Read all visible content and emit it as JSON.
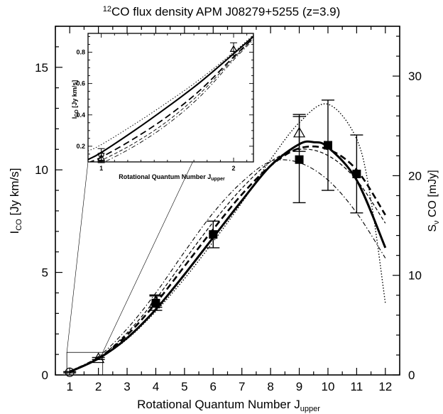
{
  "chart_data": {
    "type": "line",
    "title": {
      "sup": "12",
      "rest": "CO flux density APM J08279+5255 (z=3.9)"
    },
    "xlabel": {
      "main": "Rotational Quantum Number J",
      "sub": "upper"
    },
    "ylabel": {
      "main": "I",
      "sub": "CO",
      "rest": " [Jy km/s]"
    },
    "y2label": {
      "main": "S",
      "sub": "ν",
      "rest": " CO [mJy]"
    },
    "xlim": [
      0.5,
      12.5
    ],
    "ylim": [
      0,
      17
    ],
    "xticks": [
      1,
      2,
      3,
      4,
      5,
      6,
      7,
      8,
      9,
      10,
      11,
      12
    ],
    "yticks": [
      0,
      5,
      10,
      15
    ],
    "y2lim": [
      0,
      35
    ],
    "y2ticks": [
      0,
      10,
      20,
      30
    ],
    "grid": false,
    "series": [
      {
        "style": "thick-solid",
        "x": [
          1,
          2,
          3,
          4,
          5,
          6,
          7,
          8,
          9,
          9.5,
          10,
          11,
          12
        ],
        "y": [
          0.15,
          0.8,
          1.8,
          3.2,
          4.9,
          6.7,
          8.5,
          10.2,
          11.25,
          11.35,
          11.1,
          9.5,
          6.2
        ]
      },
      {
        "style": "thick-dashed",
        "x": [
          1,
          2,
          3,
          4,
          5,
          6,
          7,
          8,
          9,
          10,
          11,
          12
        ],
        "y": [
          0.16,
          0.82,
          1.95,
          3.5,
          5.3,
          7.1,
          8.8,
          10.2,
          11.05,
          11.0,
          10.0,
          7.8
        ]
      },
      {
        "style": "thin-dashed",
        "x": [
          1,
          2,
          3,
          4,
          5,
          6,
          7,
          8,
          9,
          10,
          11,
          12
        ],
        "y": [
          0.17,
          0.84,
          2.05,
          3.7,
          5.6,
          7.45,
          9.1,
          10.4,
          11.0,
          10.7,
          9.5,
          7.4
        ]
      },
      {
        "style": "dash-dot",
        "x": [
          1,
          2,
          3,
          4,
          5,
          6,
          7,
          8,
          9,
          10,
          11,
          12
        ],
        "y": [
          0.19,
          0.9,
          2.25,
          4.0,
          6.0,
          7.9,
          9.4,
          10.4,
          10.35,
          9.5,
          7.9,
          5.7
        ]
      },
      {
        "style": "dotted",
        "x": [
          1,
          2,
          3,
          4,
          5,
          6,
          7,
          8,
          9,
          10,
          11,
          11.5,
          12
        ],
        "y": [
          0.14,
          0.78,
          1.75,
          3.1,
          4.7,
          6.5,
          8.4,
          10.5,
          12.3,
          13.2,
          11.5,
          8.5,
          3.5
        ]
      }
    ],
    "points": [
      {
        "marker": "circle",
        "x": 1,
        "y": 0.13,
        "err": 0.03
      },
      {
        "marker": "triangle",
        "x": 2,
        "y": 0.8,
        "err": 0.05
      },
      {
        "marker": "triangle",
        "x": 4,
        "y": 3.6,
        "err": 0.3
      },
      {
        "marker": "square",
        "x": 4,
        "y": 3.5,
        "err": 0.35
      },
      {
        "marker": "square",
        "x": 6,
        "y": 6.85,
        "err": 0.65
      },
      {
        "marker": "triangle",
        "x": 9,
        "y": 11.8,
        "err": 0.9
      },
      {
        "marker": "square",
        "x": 9,
        "y": 10.5,
        "err": 2.1
      },
      {
        "marker": "square",
        "x": 10,
        "y": 11.2,
        "err": 2.2
      },
      {
        "marker": "square",
        "x": 11,
        "y": 9.8,
        "err": 1.9
      }
    ],
    "inset": {
      "xlabel": {
        "main": "Rotational Quantum Number J",
        "sub": "upper"
      },
      "ylabel": {
        "main": "I",
        "sub": "CO",
        "rest": " [Jy km/s]"
      },
      "xlim": [
        0.9,
        2.15
      ],
      "ylim": [
        0.1,
        0.92
      ],
      "xticks": [
        1,
        2
      ],
      "yticks": [
        0.2,
        0.4,
        0.6,
        0.8
      ],
      "ytick_labels": [
        "0.2",
        "0.4",
        "0.6",
        "0.8"
      ],
      "source_window": {
        "xlim": [
          0.9,
          2.15
        ],
        "ylim": [
          0,
          1.1
        ]
      },
      "series": [
        {
          "style": "thick-solid",
          "x": [
            0.9,
            1,
            1.25,
            1.5,
            1.75,
            2,
            2.15
          ],
          "y": [
            0.115,
            0.16,
            0.3,
            0.45,
            0.61,
            0.79,
            0.9
          ]
        },
        {
          "style": "thick-dashed",
          "x": [
            0.9,
            1,
            1.25,
            1.5,
            1.75,
            2,
            2.15
          ],
          "y": [
            0.095,
            0.13,
            0.25,
            0.39,
            0.56,
            0.77,
            0.89
          ]
        },
        {
          "style": "thin-dashed",
          "x": [
            0.9,
            1,
            1.25,
            1.5,
            1.75,
            2,
            2.15
          ],
          "y": [
            0.085,
            0.11,
            0.22,
            0.36,
            0.54,
            0.76,
            0.89
          ]
        },
        {
          "style": "dash-dot",
          "x": [
            0.9,
            1,
            1.25,
            1.5,
            1.75,
            2,
            2.15
          ],
          "y": [
            0.065,
            0.09,
            0.2,
            0.34,
            0.52,
            0.75,
            0.88
          ]
        },
        {
          "style": "dotted",
          "x": [
            0.9,
            1,
            1.25,
            1.5,
            1.75,
            2,
            2.15
          ],
          "y": [
            0.17,
            0.21,
            0.34,
            0.48,
            0.63,
            0.8,
            0.91
          ]
        }
      ],
      "points": [
        {
          "marker": "circle",
          "x": 1,
          "y": 0.145,
          "err": 0.04
        },
        {
          "marker": "triangle",
          "x": 1,
          "y": 0.125,
          "err": 0.03
        },
        {
          "marker": "triangle",
          "x": 2,
          "y": 0.82,
          "err": 0.04
        }
      ]
    }
  }
}
